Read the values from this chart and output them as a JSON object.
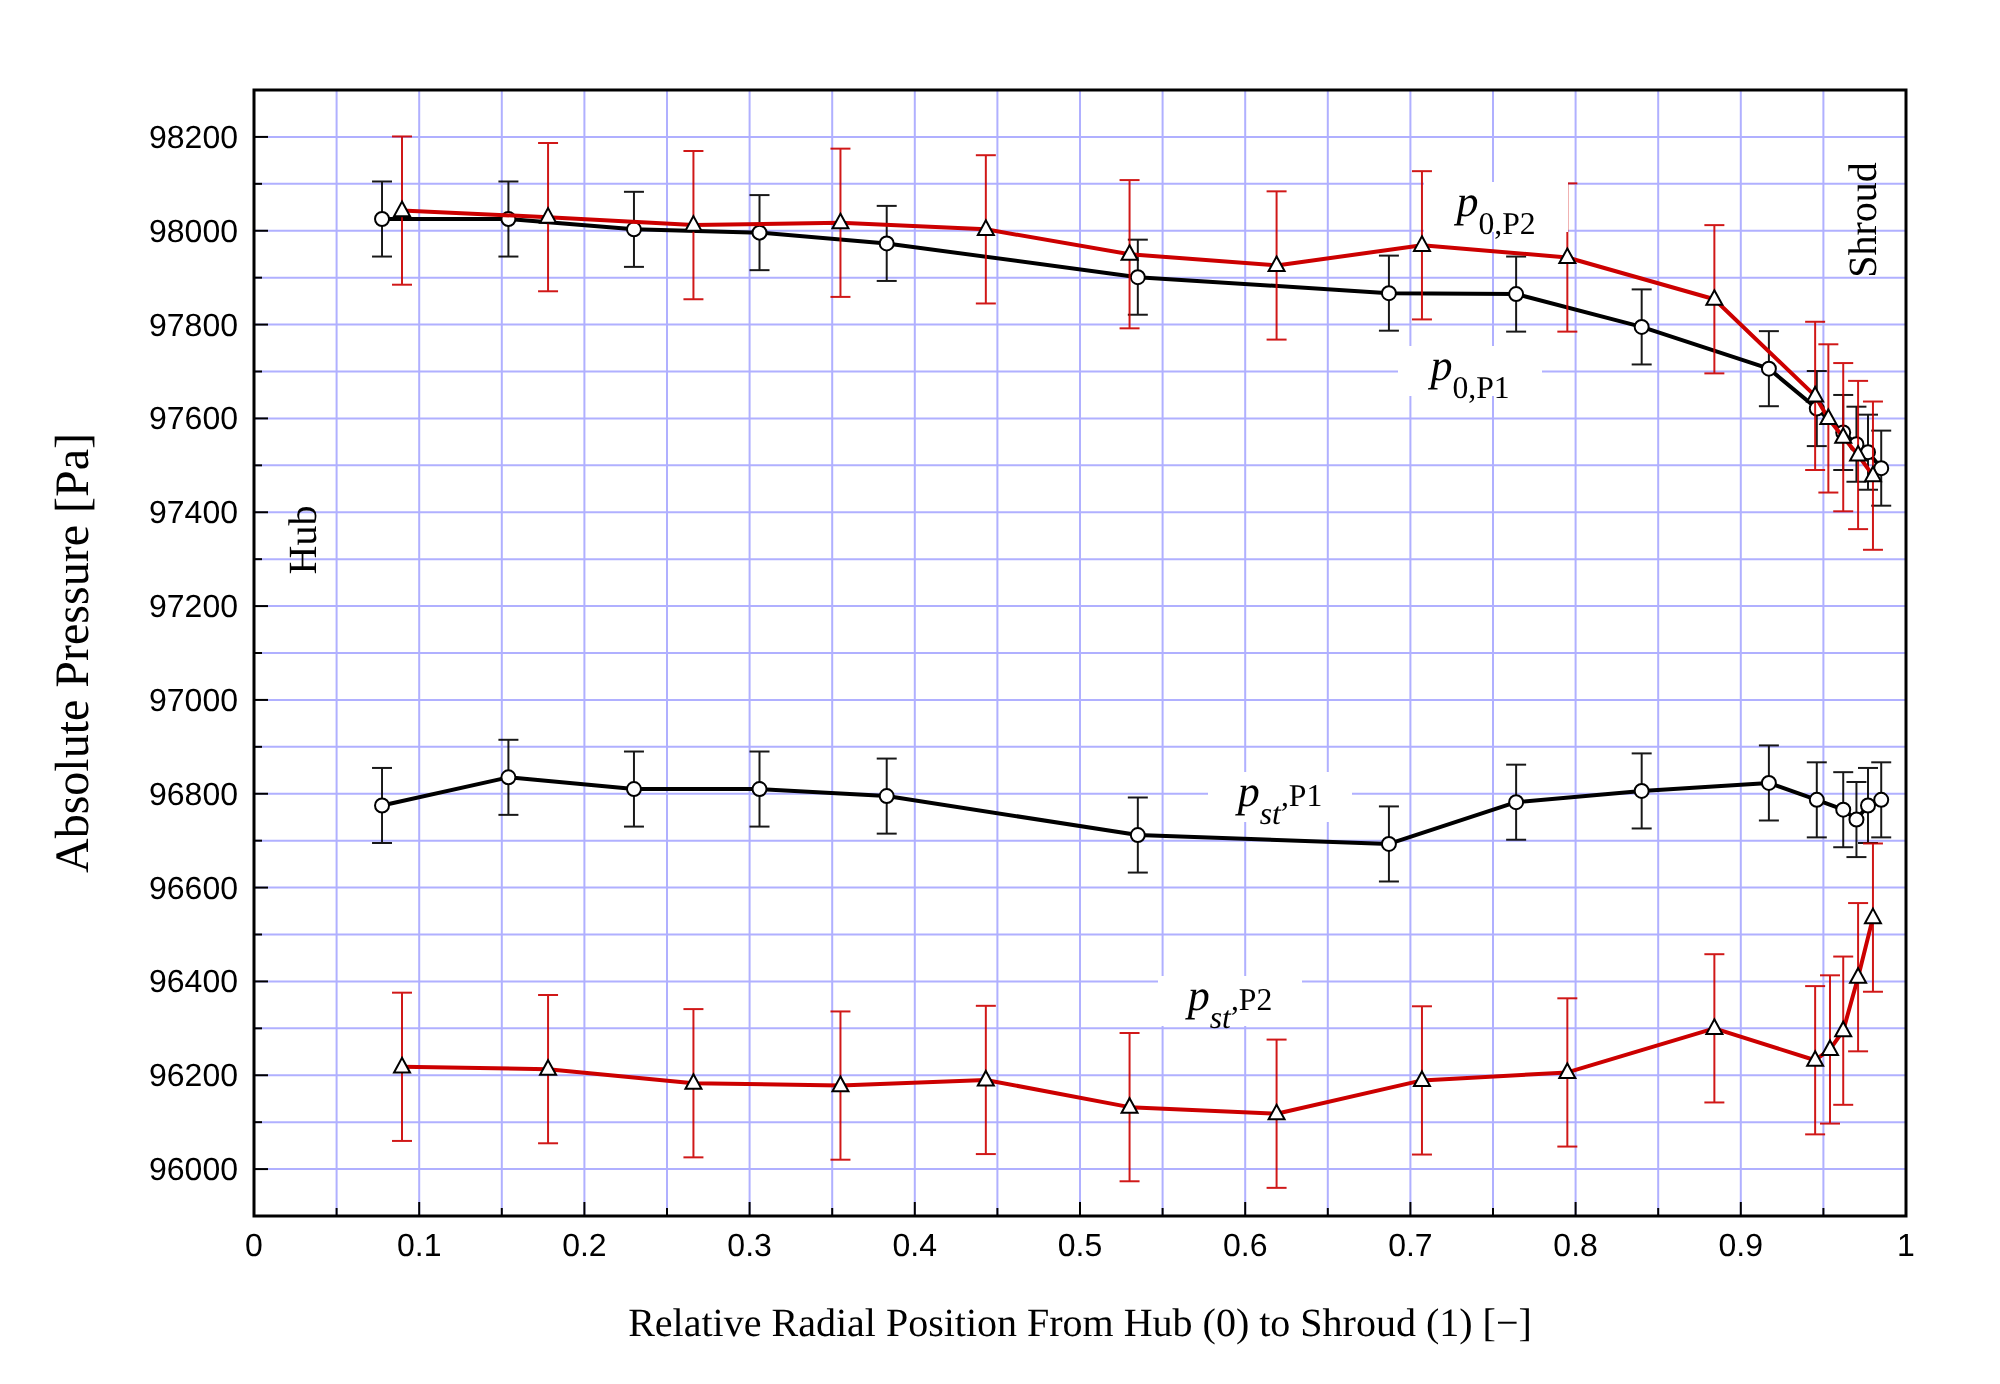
{
  "chart_data": {
    "type": "line",
    "xlabel": "Relative Radial Position From Hub (0) to Shroud (1) [−]",
    "ylabel": "Absolute Pressure [Pa]",
    "xlim": [
      0,
      1
    ],
    "ylim": [
      95900,
      98300
    ],
    "xticks": [
      0,
      {
        "value": 0.05,
        "label": null
      },
      0.1,
      {
        "value": 0.15,
        "label": null
      },
      0.2,
      {
        "value": 0.25,
        "label": null
      },
      0.3,
      {
        "value": 0.35,
        "label": null
      },
      0.4,
      {
        "value": 0.45,
        "label": null
      },
      0.5,
      {
        "value": 0.55,
        "label": null
      },
      0.6,
      {
        "value": 0.65,
        "label": null
      },
      0.7,
      {
        "value": 0.75,
        "label": null
      },
      0.8,
      {
        "value": 0.85,
        "label": null
      },
      0.9,
      {
        "value": 0.95,
        "label": null
      },
      1
    ],
    "yticks": [
      96000,
      {
        "value": 96100,
        "label": null
      },
      96200,
      {
        "value": 96300,
        "label": null
      },
      96400,
      {
        "value": 96500,
        "label": null
      },
      96600,
      {
        "value": 96700,
        "label": null
      },
      96800,
      {
        "value": 96900,
        "label": null
      },
      97000,
      {
        "value": 97100,
        "label": null
      },
      97200,
      {
        "value": 97300,
        "label": null
      },
      97400,
      {
        "value": 97500,
        "label": null
      },
      97600,
      {
        "value": 97700,
        "label": null
      },
      97800,
      {
        "value": 97900,
        "label": null
      },
      98000,
      {
        "value": 98100,
        "label": null
      },
      98200
    ],
    "grid": true,
    "line_style": "solid",
    "series": [
      {
        "name": "p$_{0,P1}$",
        "color": "#000000",
        "marker": "circle",
        "x": [
          0.0775,
          0.154,
          0.23,
          0.306,
          0.383,
          0.535,
          0.687,
          0.764,
          0.84,
          0.917,
          0.946,
          0.962,
          0.97,
          0.977,
          0.985
        ],
        "values": [
          98025,
          98025,
          98003,
          97996,
          97973,
          97901,
          97867,
          97865,
          97795,
          97706,
          97621,
          97570,
          97545,
          97528,
          97494
        ],
        "errors": [
          80,
          80,
          80,
          80,
          80,
          80,
          80,
          80,
          80,
          80,
          80,
          80,
          80,
          80,
          80
        ]
      },
      {
        "name": "p$_{0,P2}$",
        "color": "#cc0000",
        "marker": "triangle",
        "x": [
          0.0896,
          0.178,
          0.266,
          0.355,
          0.443,
          0.53,
          0.619,
          0.707,
          0.795,
          0.884,
          0.945,
          0.953,
          0.962,
          0.971,
          0.98
        ],
        "values": [
          98043,
          98029,
          98012,
          98017,
          98003,
          97950,
          97926,
          97969,
          97943,
          97854,
          97648,
          97600,
          97560,
          97522,
          97478
        ],
        "errors": [
          158,
          158,
          158,
          158,
          158,
          158,
          158,
          158,
          158,
          158,
          158,
          158,
          158,
          158,
          158
        ]
      },
      {
        "name": "p$_{st,P1}$",
        "color": "#000000",
        "marker": "circle",
        "x": [
          0.0775,
          0.154,
          0.23,
          0.306,
          0.383,
          0.535,
          0.687,
          0.764,
          0.84,
          0.917,
          0.946,
          0.962,
          0.97,
          0.977,
          0.985
        ],
        "values": [
          96775,
          96835,
          96810,
          96810,
          96795,
          96712,
          96693,
          96782,
          96806,
          96823,
          96787,
          96766,
          96745,
          96775,
          96787
        ],
        "errors": [
          80,
          80,
          80,
          80,
          80,
          80,
          80,
          80,
          80,
          80,
          80,
          80,
          80,
          80,
          80
        ]
      },
      {
        "name": "p$_{st,P2}$",
        "color": "#cc0000",
        "marker": "triangle",
        "x": [
          0.0896,
          0.178,
          0.266,
          0.355,
          0.443,
          0.53,
          0.619,
          0.707,
          0.795,
          0.884,
          0.945,
          0.954,
          0.962,
          0.971,
          0.98
        ],
        "values": [
          96218,
          96213,
          96183,
          96178,
          96190,
          96132,
          96118,
          96189,
          96206,
          96300,
          96232,
          96255,
          96295,
          96409,
          96536
        ],
        "errors": [
          158,
          158,
          158,
          158,
          158,
          158,
          158,
          158,
          158,
          158,
          158,
          158,
          158,
          158,
          158
        ]
      }
    ],
    "annotations": [
      "Hub",
      "Shroud"
    ]
  }
}
